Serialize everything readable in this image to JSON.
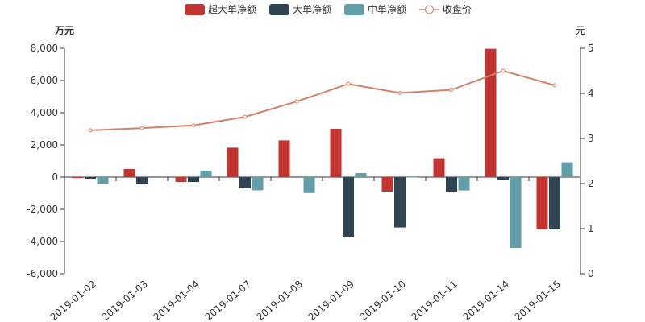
{
  "chart_data": {
    "type": "bar",
    "categories": [
      "2019-01-02",
      "2019-01-03",
      "2019-01-04",
      "2019-01-07",
      "2019-01-08",
      "2019-01-09",
      "2019-01-10",
      "2019-01-11",
      "2019-01-14",
      "2019-01-15"
    ],
    "left_axis": {
      "label": "万元",
      "ylim": [
        -6000,
        8000
      ],
      "ticks": [
        -6000,
        -4000,
        -2000,
        0,
        2000,
        4000,
        6000,
        8000
      ],
      "tick_labels": [
        "-6,000",
        "-4,000",
        "-2,000",
        "0",
        "2,000",
        "4,000",
        "6,000",
        "8,000"
      ]
    },
    "right_axis": {
      "label": "元",
      "ylim": [
        0,
        5
      ],
      "ticks": [
        0,
        1,
        2,
        3,
        4,
        5
      ],
      "tick_labels": [
        "0",
        "1",
        "2",
        "3",
        "4",
        "5"
      ]
    },
    "series": [
      {
        "name": "超大单净额",
        "type": "bar",
        "color": "#c23531",
        "values": [
          -50,
          500,
          -300,
          1830,
          2280,
          3000,
          -900,
          1170,
          7970,
          -3250
        ]
      },
      {
        "name": "大单净额",
        "type": "bar",
        "color": "#2f4554",
        "values": [
          -100,
          -450,
          -300,
          -700,
          30,
          -3750,
          -3130,
          -900,
          -160,
          -3250
        ]
      },
      {
        "name": "中单净额",
        "type": "bar",
        "color": "#61a0a8",
        "values": [
          -400,
          50,
          400,
          -820,
          -990,
          250,
          -20,
          -830,
          -4400,
          920
        ]
      },
      {
        "name": "收盘价",
        "type": "line",
        "axis": "right",
        "color": "#d48265",
        "values": [
          3.18,
          3.23,
          3.29,
          3.48,
          3.82,
          4.21,
          4.01,
          4.08,
          4.5,
          4.18
        ]
      }
    ],
    "legend": "top-center",
    "grid": false
  }
}
